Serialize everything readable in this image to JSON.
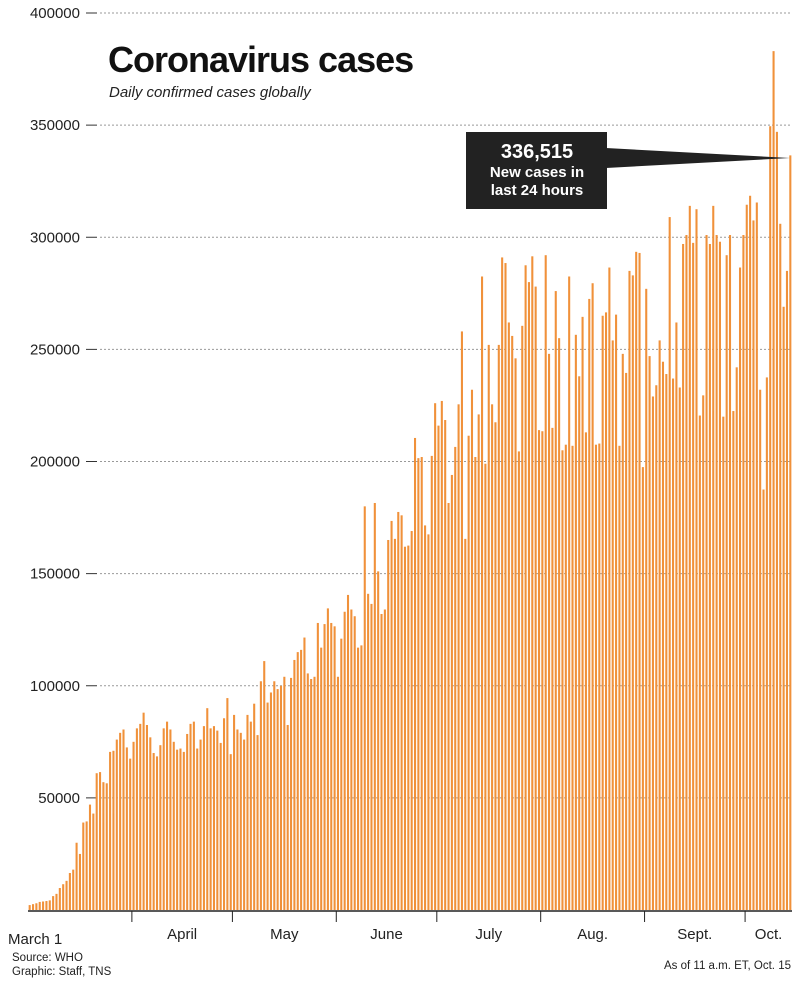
{
  "chart_data": {
    "type": "bar",
    "title": "Coronavirus cases",
    "subtitle": "Daily confirmed cases globally",
    "ylim": [
      0,
      400000
    ],
    "yticks": [
      {
        "value": 50000,
        "label": "50000"
      },
      {
        "value": 100000,
        "label": "100000"
      },
      {
        "value": 150000,
        "label": "150000"
      },
      {
        "value": 200000,
        "label": "200000"
      },
      {
        "value": 250000,
        "label": "250000"
      },
      {
        "value": 300000,
        "label": "300000"
      },
      {
        "value": 350000,
        "label": "350000"
      },
      {
        "value": 400000,
        "label": "400000"
      }
    ],
    "month_labels": [
      {
        "label": "March 1",
        "day": 0
      },
      {
        "label": "April",
        "day": 31
      },
      {
        "label": "May",
        "day": 61
      },
      {
        "label": "June",
        "day": 92
      },
      {
        "label": "July",
        "day": 122
      },
      {
        "label": "Aug.",
        "day": 153
      },
      {
        "label": "Sept.",
        "day": 184
      },
      {
        "label": "Oct.",
        "day": 214
      }
    ],
    "bar_color": "#f0913a",
    "values": [
      2200,
      2600,
      3000,
      3600,
      3800,
      4000,
      4300,
      6200,
      7200,
      9800,
      11500,
      13000,
      16500,
      18000,
      30000,
      25000,
      39000,
      39500,
      47000,
      43000,
      61000,
      61500,
      57000,
      56500,
      70500,
      71000,
      76000,
      79000,
      80500,
      72500,
      67500,
      75000,
      81000,
      83000,
      88000,
      82500,
      77000,
      70000,
      68500,
      73500,
      81000,
      84000,
      80500,
      75000,
      71500,
      72000,
      70500,
      78500,
      83000,
      84000,
      72000,
      76000,
      82000,
      90000,
      81000,
      82000,
      80000,
      74500,
      85500,
      94500,
      69500,
      87000,
      80500,
      79000,
      76000,
      87000,
      84000,
      92000,
      78000,
      102000,
      111000,
      92500,
      97000,
      102000,
      98500,
      100000,
      104000,
      82500,
      103500,
      111500,
      115000,
      116000,
      121500,
      105500,
      103000,
      104000,
      128000,
      117000,
      127500,
      134500,
      128000,
      126500,
      104000,
      121000,
      133000,
      140500,
      134000,
      131000,
      117000,
      118000,
      180000,
      141000,
      136500,
      181500,
      151000,
      132000,
      134000,
      165000,
      173500,
      165500,
      177500,
      176000,
      162000,
      162500,
      169000,
      210500,
      201500,
      202000,
      171500,
      167500,
      202500,
      226000,
      216000,
      227000,
      218500,
      181500,
      194000,
      206500,
      225500,
      258000,
      165500,
      211500,
      232000,
      202000,
      221000,
      282500,
      199000,
      252000,
      225500,
      217500,
      252000,
      291000,
      288500,
      262000,
      256000,
      246000,
      204500,
      260500,
      287500,
      280000,
      291500,
      278000,
      214000,
      213500,
      292000,
      248000,
      215000,
      276000,
      255000,
      205000,
      207500,
      282500,
      207000,
      256500,
      238000,
      264500,
      213000,
      272500,
      279500,
      207500,
      208000,
      265000,
      266500,
      286500,
      254000,
      265500,
      207000,
      248000,
      239500,
      285000,
      283000,
      293500,
      293000,
      197500,
      277000,
      247000,
      229000,
      234000,
      254000,
      244500,
      239000,
      309000,
      237000,
      262000,
      233000,
      297000,
      301000,
      314000,
      297500,
      312500,
      220500,
      229500,
      301000,
      297000,
      314000,
      301000,
      298000,
      220000,
      292000,
      301000,
      222500,
      242000,
      286500,
      301000,
      314500,
      318500,
      307500,
      315500,
      232000,
      187500,
      237500,
      349500,
      383000,
      347000,
      306000,
      269000,
      285000,
      336515
    ]
  },
  "callout": {
    "value": "336,515",
    "line1": "New cases in",
    "line2": "last 24 hours"
  },
  "footer": {
    "source": "Source: WHO",
    "graphic": "Graphic: Staff, TNS",
    "asof": "As of 11 a.m. ET, Oct. 15"
  }
}
